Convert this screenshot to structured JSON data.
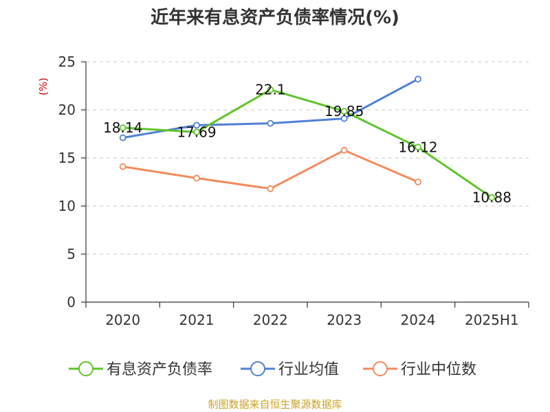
{
  "chart_data": {
    "type": "line",
    "title": "近年来有息资产负债率情况(%)",
    "ylabel": "(%)",
    "categories": [
      "2020",
      "2021",
      "2022",
      "2023",
      "2024",
      "2025H1"
    ],
    "ylim": [
      0,
      25
    ],
    "yticks": [
      0,
      5,
      10,
      15,
      20,
      25
    ],
    "grid": true,
    "legend_position": "bottom",
    "series": [
      {
        "name": "有息资产负债率",
        "color": "#5ec42a",
        "values": [
          18.14,
          17.69,
          22.1,
          19.85,
          16.12,
          10.88
        ],
        "labels": [
          "18.14",
          "17.69",
          "22.1",
          "19.85",
          "16.12",
          "10.88"
        ]
      },
      {
        "name": "行业均值",
        "color": "#4f7fd6",
        "values": [
          17.1,
          18.4,
          18.6,
          19.1,
          23.2,
          null
        ]
      },
      {
        "name": "行业中位数",
        "color": "#f38a5a",
        "values": [
          14.1,
          12.9,
          11.8,
          15.8,
          12.5,
          null
        ]
      }
    ]
  },
  "source": "制图数据来自恒生聚源数据库"
}
